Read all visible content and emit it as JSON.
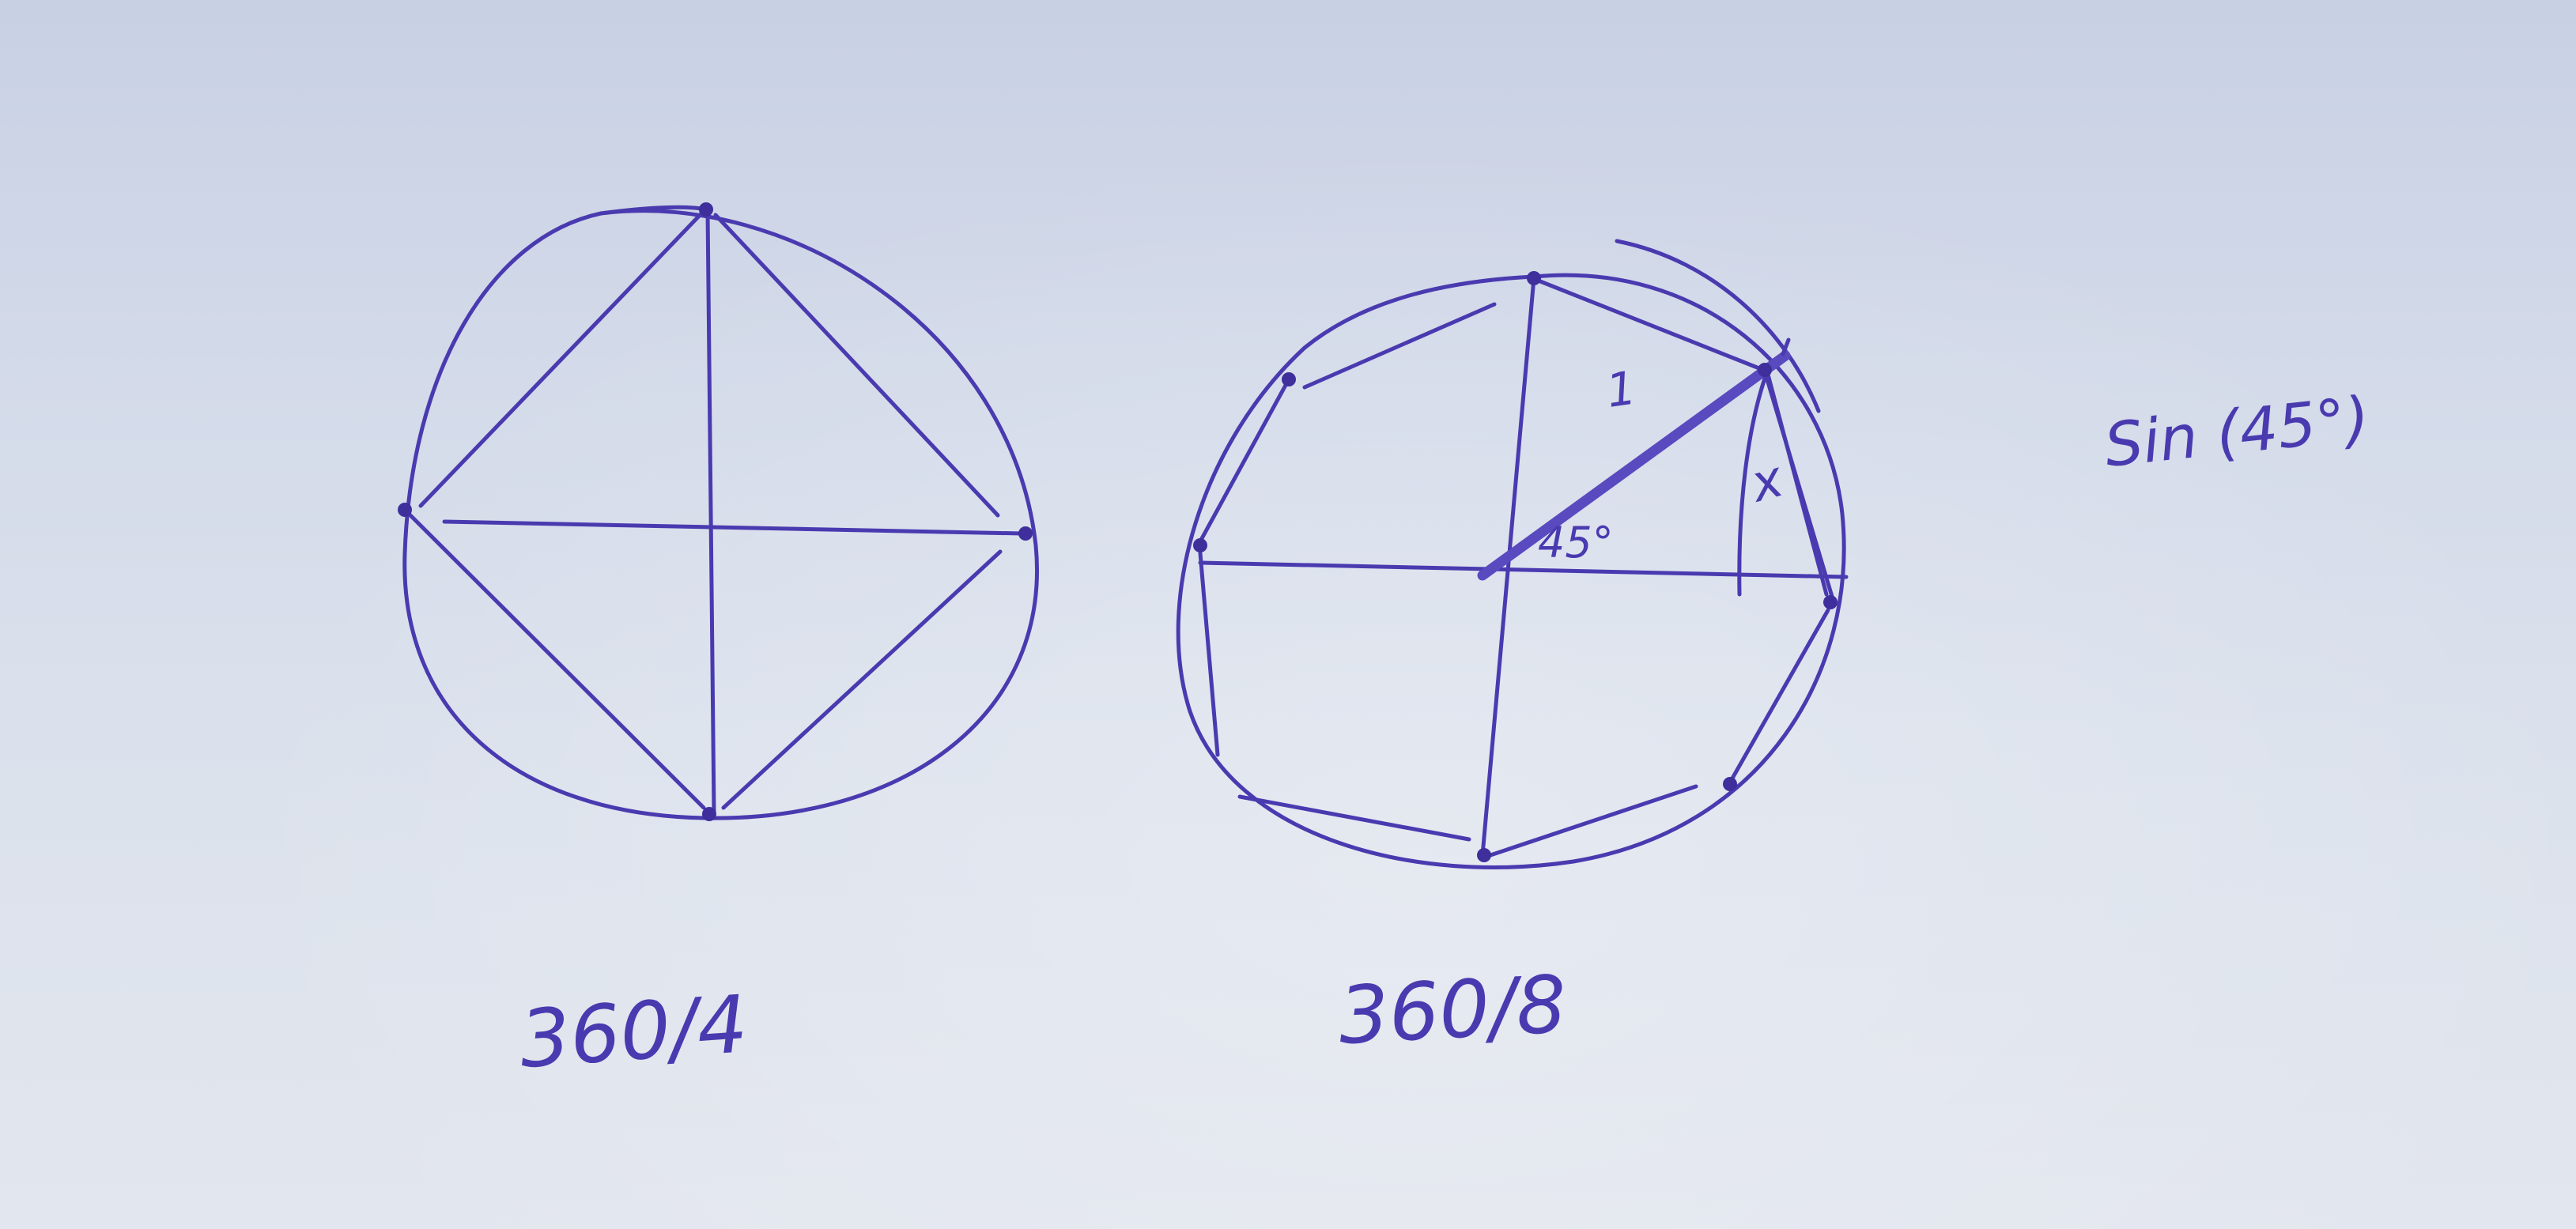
{
  "figures": [
    {
      "id": "square-circle",
      "caption": "360/4",
      "vertex_count": 4
    },
    {
      "id": "octagon-circle",
      "caption": "360/8",
      "vertex_count": 8,
      "radius_label": "1",
      "angle_label": "45°",
      "side_label": "x"
    }
  ],
  "note": "Sin (45°)",
  "ink_color": "#4a3ab0"
}
